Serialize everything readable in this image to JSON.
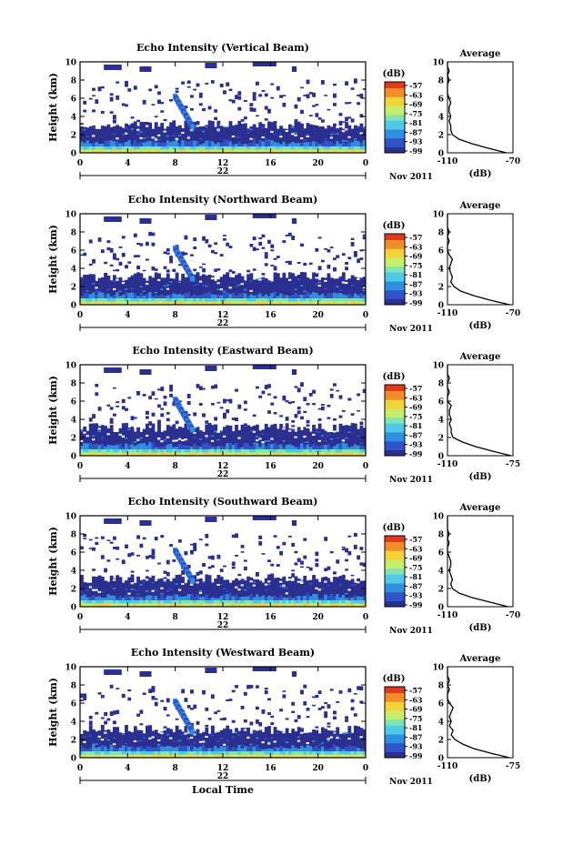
{
  "chart_data": [
    {
      "type": "heatmap",
      "title": "Echo Intensity (Vertical Beam)",
      "ylabel": "Height (km)",
      "ylim": [
        0,
        10
      ],
      "yticks": [
        "0",
        "2",
        "4",
        "6",
        "8",
        "10"
      ],
      "xlim": [
        0,
        24
      ],
      "xticks": [
        "0",
        "4",
        "8",
        "12",
        "16",
        "20",
        "0"
      ],
      "date_label": "22",
      "month_label": "Nov 2011",
      "colorbar": {
        "label": "(dB)",
        "ticks": [
          "-57",
          "-63",
          "-69",
          "-75",
          "-81",
          "-87",
          "-93",
          "-99"
        ]
      },
      "profile": {
        "title": "Average",
        "xlabel": "(dB)",
        "xlim": [
          -110,
          -70
        ],
        "xticks": [
          "-110",
          "-70"
        ],
        "yticks": [
          "0",
          "2",
          "4",
          "6",
          "8",
          "10"
        ],
        "heights": [
          0,
          0.5,
          1,
          1.5,
          2,
          2.5,
          3,
          3.5,
          4,
          4.5,
          5,
          5.5,
          6,
          6.5,
          7,
          7.5,
          8,
          8.5,
          9,
          9.5,
          10
        ],
        "values": [
          -74,
          -85,
          -95,
          -103,
          -107,
          -108,
          -108,
          -109,
          -108,
          -109,
          -109,
          -108,
          -109,
          -110,
          -110,
          -110,
          -109,
          -110,
          -109,
          -110,
          -110
        ]
      }
    },
    {
      "type": "heatmap",
      "title": "Echo Intensity (Northward Beam)",
      "ylabel": "Height (km)",
      "ylim": [
        0,
        10
      ],
      "yticks": [
        "0",
        "2",
        "4",
        "6",
        "8",
        "10"
      ],
      "xlim": [
        0,
        24
      ],
      "xticks": [
        "0",
        "4",
        "8",
        "12",
        "16",
        "20",
        "0"
      ],
      "date_label": "22",
      "month_label": "Nov 2011",
      "colorbar": {
        "label": "(dB)",
        "ticks": [
          "-57",
          "-63",
          "-69",
          "-75",
          "-81",
          "-87",
          "-93",
          "-99"
        ]
      },
      "profile": {
        "title": "Average",
        "xlabel": "(dB)",
        "xlim": [
          -110,
          -70
        ],
        "xticks": [
          "-110",
          "-70"
        ],
        "yticks": [
          "0",
          "2",
          "4",
          "6",
          "8",
          "10"
        ],
        "heights": [
          0,
          0.5,
          1,
          1.5,
          2,
          2.5,
          3,
          3.5,
          4,
          4.5,
          5,
          5.5,
          6,
          6.5,
          7,
          7.5,
          8,
          8.5,
          9,
          9.5,
          10
        ],
        "values": [
          -72,
          -84,
          -94,
          -102,
          -106,
          -108,
          -107,
          -108,
          -109,
          -108,
          -107,
          -109,
          -110,
          -110,
          -109,
          -110,
          -109,
          -110,
          -110,
          -110,
          -110
        ]
      }
    },
    {
      "type": "heatmap",
      "title": "Echo Intensity (Eastward Beam)",
      "ylabel": "Height (km)",
      "ylim": [
        0,
        10
      ],
      "yticks": [
        "0",
        "2",
        "4",
        "6",
        "8",
        "10"
      ],
      "xlim": [
        0,
        24
      ],
      "xticks": [
        "0",
        "4",
        "8",
        "12",
        "16",
        "20",
        "0"
      ],
      "date_label": "22",
      "month_label": "Nov 2011",
      "colorbar": {
        "label": "(dB)",
        "ticks": [
          "-57",
          "-63",
          "-69",
          "-75",
          "-81",
          "-87",
          "-93",
          "-99"
        ]
      },
      "profile": {
        "title": "Average",
        "xlabel": "(dB)",
        "xlim": [
          -110,
          -75
        ],
        "xticks": [
          "-110",
          "-75"
        ],
        "yticks": [
          "0",
          "2",
          "4",
          "6",
          "8",
          "10"
        ],
        "heights": [
          0,
          0.5,
          1,
          1.5,
          2,
          2.5,
          3,
          3.5,
          4,
          4.5,
          5,
          5.5,
          6,
          6.5,
          7,
          7.5,
          8,
          8.5,
          9,
          9.5,
          10
        ],
        "values": [
          -76,
          -86,
          -95,
          -102,
          -107,
          -108,
          -108,
          -109,
          -108,
          -109,
          -109,
          -108,
          -110,
          -110,
          -109,
          -110,
          -110,
          -109,
          -110,
          -110,
          -110
        ]
      }
    },
    {
      "type": "heatmap",
      "title": "Echo Intensity (Southward Beam)",
      "ylabel": "Height (km)",
      "ylim": [
        0,
        10
      ],
      "yticks": [
        "0",
        "2",
        "4",
        "6",
        "8",
        "10"
      ],
      "xlim": [
        0,
        24
      ],
      "xticks": [
        "0",
        "4",
        "8",
        "12",
        "16",
        "20",
        "0"
      ],
      "date_label": "22",
      "month_label": "Nov 2011",
      "colorbar": {
        "label": "(dB)",
        "ticks": [
          "-57",
          "-63",
          "-69",
          "-75",
          "-81",
          "-87",
          "-93",
          "-99"
        ]
      },
      "profile": {
        "title": "Average",
        "xlabel": "(dB)",
        "xlim": [
          -110,
          -70
        ],
        "xticks": [
          "-110",
          "-70"
        ],
        "yticks": [
          "0",
          "2",
          "4",
          "6",
          "8",
          "10"
        ],
        "heights": [
          0,
          0.5,
          1,
          1.5,
          2,
          2.5,
          3,
          3.5,
          4,
          4.5,
          5,
          5.5,
          6,
          6.5,
          7,
          7.5,
          8,
          8.5,
          9,
          9.5,
          10
        ],
        "values": [
          -73,
          -84,
          -95,
          -103,
          -107,
          -108,
          -107,
          -108,
          -109,
          -108,
          -108,
          -109,
          -110,
          -110,
          -109,
          -110,
          -109,
          -110,
          -110,
          -110,
          -110
        ]
      }
    },
    {
      "type": "heatmap",
      "title": "Echo Intensity (Westward Beam)",
      "ylabel": "Height (km)",
      "ylim": [
        0,
        10
      ],
      "yticks": [
        "0",
        "2",
        "4",
        "6",
        "8",
        "10"
      ],
      "xlim": [
        0,
        24
      ],
      "xticks": [
        "0",
        "4",
        "8",
        "12",
        "16",
        "20",
        "0"
      ],
      "date_label": "22",
      "month_label": "Nov 2011",
      "xlabel": "Local Time",
      "colorbar": {
        "label": "(dB)",
        "ticks": [
          "-57",
          "-63",
          "-69",
          "-75",
          "-81",
          "-87",
          "-93",
          "-99"
        ]
      },
      "profile": {
        "title": "Average",
        "xlabel": "(dB)",
        "xlim": [
          -110,
          -75
        ],
        "xticks": [
          "-110",
          "-75"
        ],
        "yticks": [
          "0",
          "2",
          "4",
          "6",
          "8",
          "10"
        ],
        "heights": [
          0,
          0.5,
          1,
          1.5,
          2,
          2.5,
          3,
          3.5,
          4,
          4.5,
          5,
          5.5,
          6,
          6.5,
          7,
          7.5,
          8,
          8.5,
          9,
          9.5,
          10
        ],
        "values": [
          -77,
          -87,
          -96,
          -102,
          -106,
          -108,
          -107,
          -109,
          -108,
          -109,
          -108,
          -107,
          -109,
          -110,
          -110,
          -109,
          -110,
          -109,
          -110,
          -110,
          -110
        ]
      }
    }
  ],
  "colors": {
    "colormap": [
      "#2b2f8f",
      "#2f54c9",
      "#2f8fe0",
      "#4fc9e8",
      "#7fe3b5",
      "#c6ee6a",
      "#f3d33a",
      "#f38d2a",
      "#e03a1e"
    ],
    "axis": "#000000",
    "dark_echo": "#2b2f8f"
  }
}
